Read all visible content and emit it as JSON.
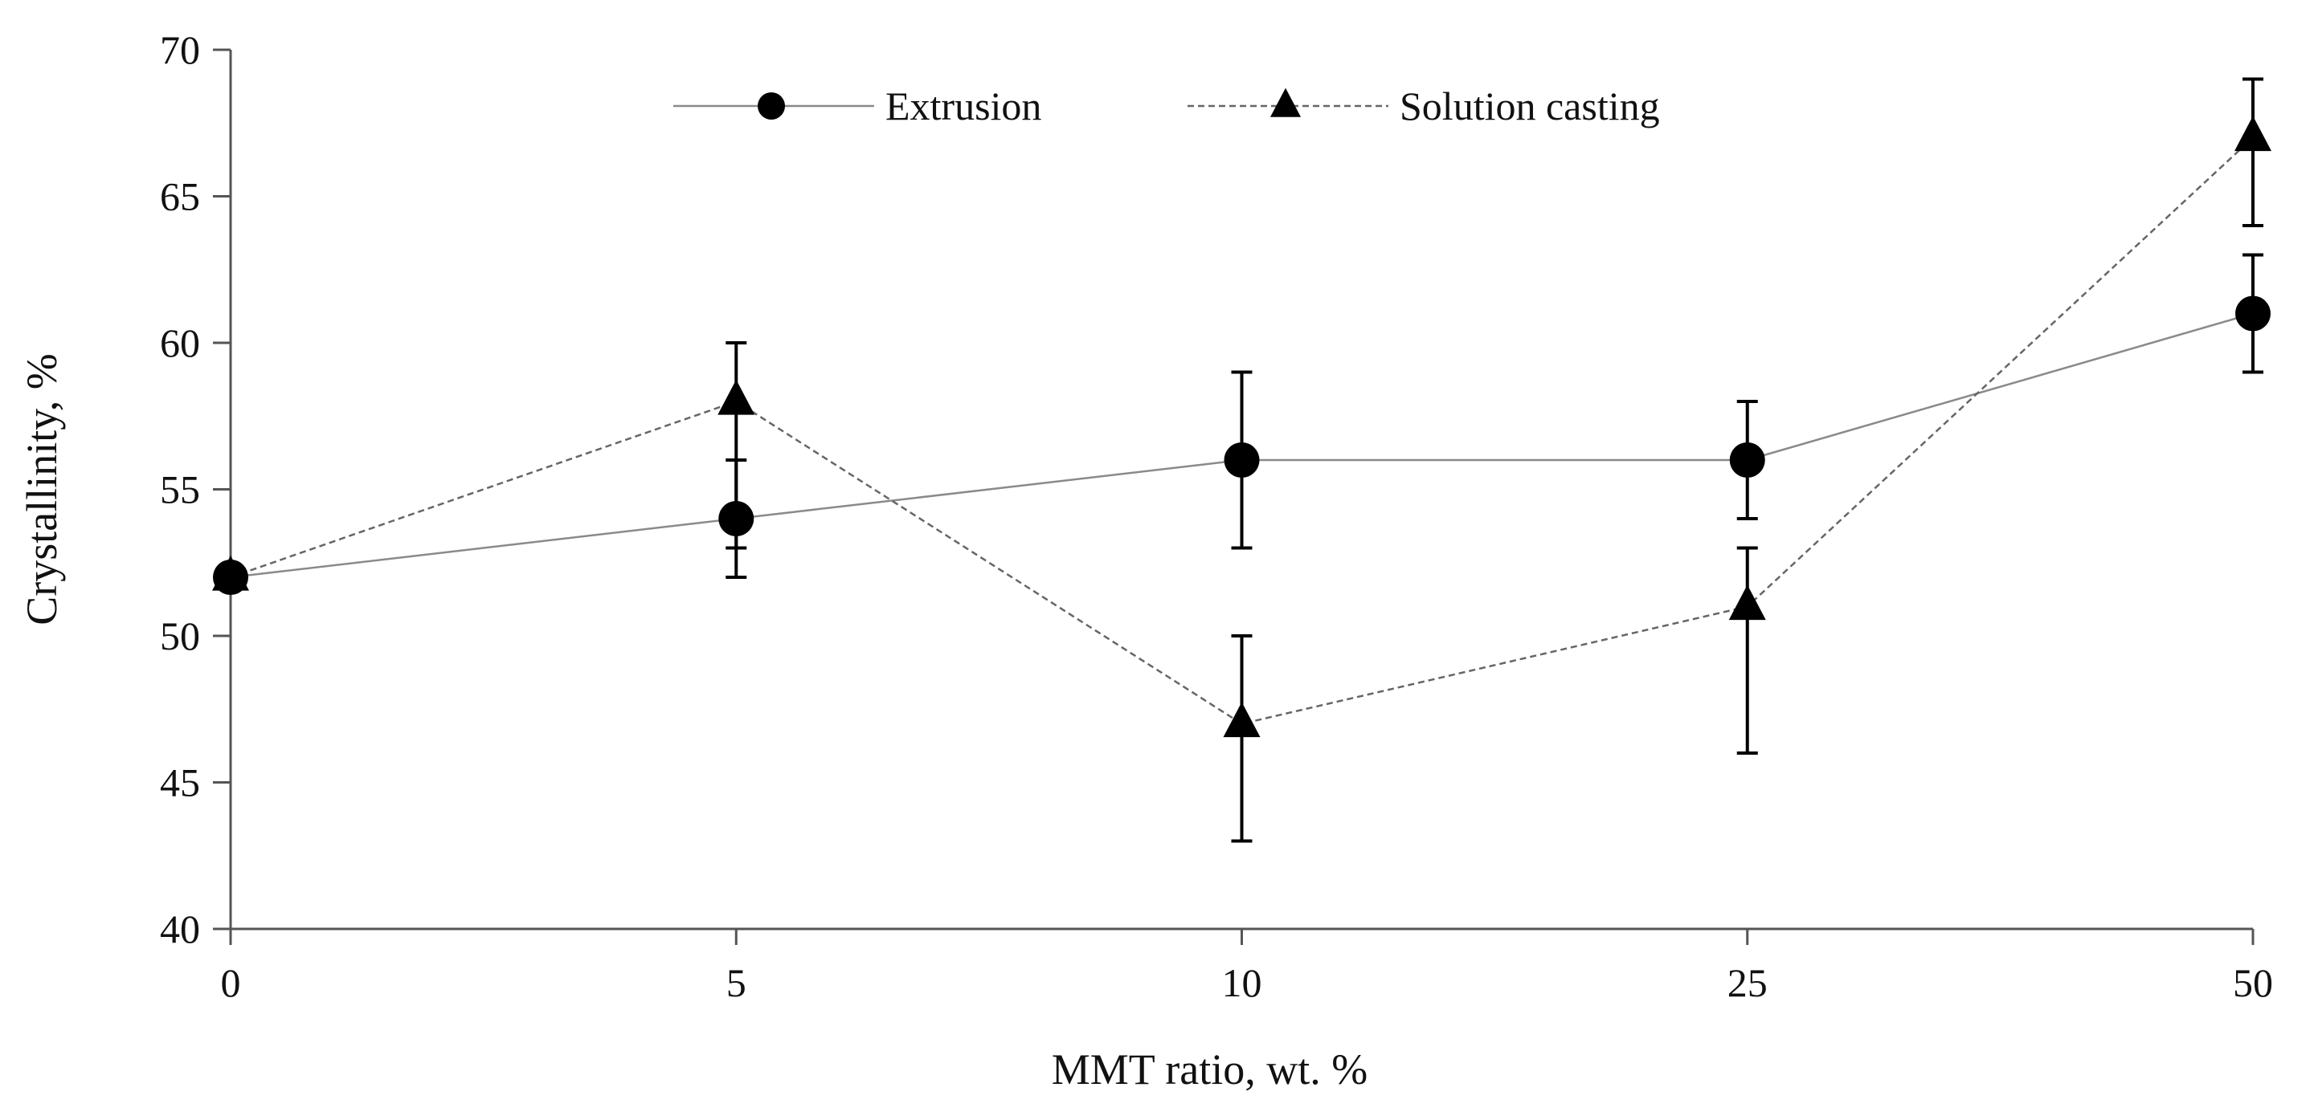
{
  "chart_data": {
    "type": "line",
    "xlabel": "MMT ratio, wt. %",
    "ylabel": "Crystallinity, %",
    "categories": [
      "0",
      "5",
      "10",
      "25",
      "50"
    ],
    "ylim": [
      40,
      70
    ],
    "yticks": [
      40,
      45,
      50,
      55,
      60,
      65,
      70
    ],
    "grid": false,
    "legend_position": "top-center",
    "series": [
      {
        "name": "Extrusion",
        "marker": "circle",
        "line_style": "solid",
        "values": [
          52,
          54,
          56,
          56,
          61
        ],
        "error_low": [
          null,
          52,
          53,
          54,
          59
        ],
        "error_high": [
          null,
          56,
          59,
          58,
          63
        ]
      },
      {
        "name": "Solution casting",
        "marker": "triangle",
        "line_style": "dashed",
        "values": [
          52,
          58,
          47,
          51,
          67
        ],
        "error_low": [
          null,
          53,
          43,
          46,
          64
        ],
        "error_high": [
          null,
          60,
          50,
          53,
          69
        ]
      }
    ]
  }
}
